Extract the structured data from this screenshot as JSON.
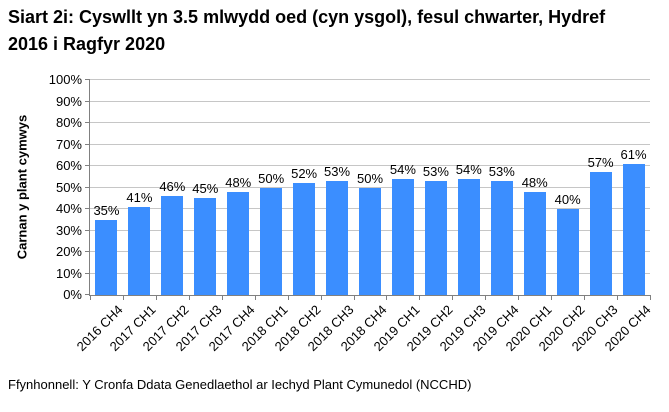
{
  "title": "Siart 2i: Cyswllt yn 3.5 mlwydd oed (cyn ysgol), fesul chwarter, Hydref 2016 i Ragfyr 2020",
  "source": "Ffynhonnell: Y Cronfa Ddata Genedlaethol ar Iechyd Plant Cymunedol (NCCHD)",
  "chart_data": {
    "type": "bar",
    "title": "Siart 2i: Cyswllt yn 3.5 mlwydd oed (cyn ysgol), fesul chwarter, Hydref 2016 i Ragfyr 2020",
    "xlabel": "",
    "ylabel": "Carnan y plant cymwys",
    "categories": [
      "2016 CH4",
      "2017 CH1",
      "2017 CH2",
      "2017 CH3",
      "2017 CH4",
      "2018 CH1",
      "2018 CH2",
      "2018 CH3",
      "2018 CH4",
      "2019 CH1",
      "2019 CH2",
      "2019 CH3",
      "2019 CH4",
      "2020 CH1",
      "2020 CH2",
      "2020 CH3",
      "2020 CH4"
    ],
    "values": [
      35,
      41,
      46,
      45,
      48,
      50,
      52,
      53,
      50,
      54,
      53,
      54,
      53,
      48,
      40,
      57,
      61
    ],
    "bar_labels": [
      "35%",
      "41%",
      "46%",
      "45%",
      "48%",
      "50%",
      "52%",
      "53%",
      "50%",
      "54%",
      "53%",
      "54%",
      "53%",
      "48%",
      "40%",
      "57%",
      "61%"
    ],
    "ylim": [
      0,
      100
    ],
    "yticks": [
      0,
      10,
      20,
      30,
      40,
      50,
      60,
      70,
      80,
      90,
      100
    ],
    "ytick_labels": [
      "0%",
      "10%",
      "20%",
      "30%",
      "40%",
      "50%",
      "60%",
      "70%",
      "80%",
      "90%",
      "100%"
    ],
    "grid": true,
    "legend_position": "none",
    "bar_color": "#3B8EFF",
    "gridline_color": "#C6C6C6",
    "axis_color": "#808080",
    "text_color": "#000000"
  }
}
